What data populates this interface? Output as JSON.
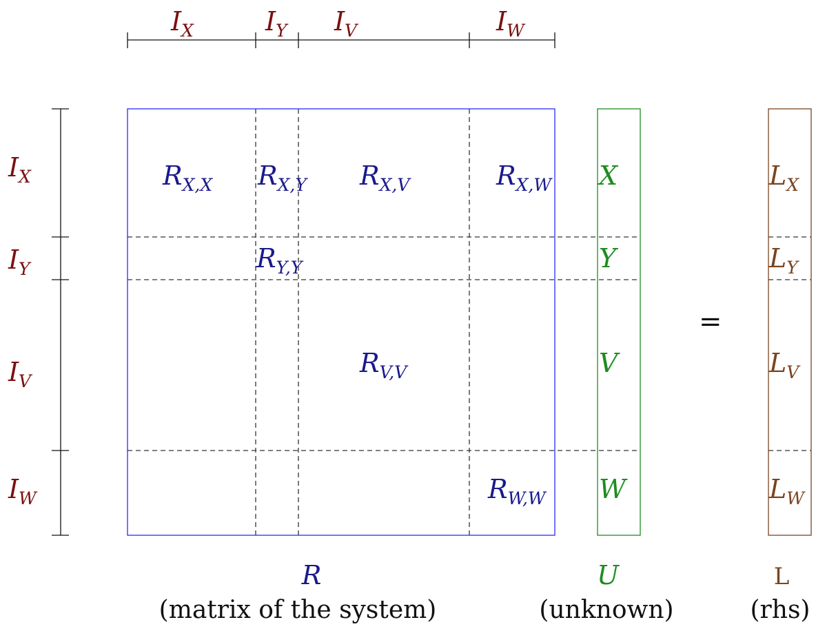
{
  "colors": {
    "index_labels": "#7a1010",
    "matrix": "#1a1a8c",
    "matrix_border": "#2a2aff",
    "unknown": "#1e8c1e",
    "rhs": "#7a4420",
    "dimension_lines": "#111111",
    "dashed_lines": "#333333"
  },
  "top_labels": [
    {
      "base": "I",
      "sub": "X"
    },
    {
      "base": "I",
      "sub": "Y"
    },
    {
      "base": "I",
      "sub": "V"
    },
    {
      "base": "I",
      "sub": "W"
    }
  ],
  "left_labels": [
    {
      "base": "I",
      "sub": "X"
    },
    {
      "base": "I",
      "sub": "Y"
    },
    {
      "base": "I",
      "sub": "V"
    },
    {
      "base": "I",
      "sub": "W"
    }
  ],
  "matrix_entries": [
    {
      "base": "R",
      "sub": "X,X"
    },
    {
      "base": "R",
      "sub": "X,Y"
    },
    {
      "base": "R",
      "sub": "X,V"
    },
    {
      "base": "R",
      "sub": "X,W"
    },
    {
      "base": "R",
      "sub": "Y,Y"
    },
    {
      "base": "R",
      "sub": "V,V"
    },
    {
      "base": "R",
      "sub": "W,W"
    }
  ],
  "unknown_entries": [
    "X",
    "Y",
    "V",
    "W"
  ],
  "rhs_entries": [
    {
      "base": "L",
      "sub": "X"
    },
    {
      "base": "L",
      "sub": "Y"
    },
    {
      "base": "L",
      "sub": "V"
    },
    {
      "base": "L",
      "sub": "W"
    }
  ],
  "equals": "=",
  "captions": {
    "matrix_symbol": "R",
    "matrix_desc": "(matrix of the system)",
    "unknown_symbol": "U",
    "unknown_desc": "(unknown)",
    "rhs_symbol": "L",
    "rhs_desc": "(rhs)"
  }
}
